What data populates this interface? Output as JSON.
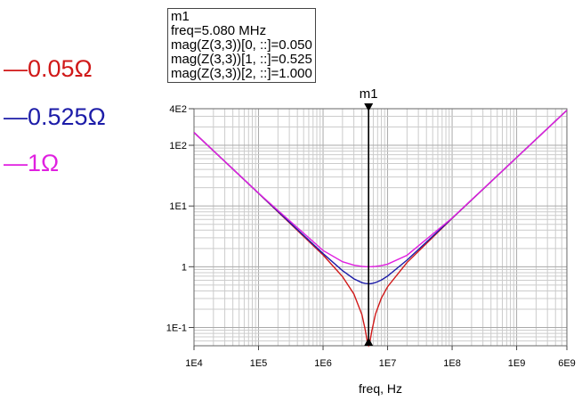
{
  "legend": [
    {
      "label": "—0.05Ω",
      "color": "#d01818"
    },
    {
      "label": "—0.525Ω",
      "color": "#1c1ca8"
    },
    {
      "label": "—1Ω",
      "color": "#e020e0"
    }
  ],
  "marker": {
    "name": "m1",
    "lines": [
      "m1",
      "freq=5.080 MHz",
      "mag(Z(3,3))[0, ::]=0.050",
      "mag(Z(3,3))[1, ::]=0.525",
      "mag(Z(3,3))[2, ::]=1.000"
    ],
    "freq": 5080000
  },
  "chart_data": {
    "type": "line",
    "xlabel": "freq, Hz",
    "ylabel": "",
    "xscale": "log",
    "yscale": "log",
    "xlim": [
      10000,
      6000000000
    ],
    "ylim": [
      0.05,
      400
    ],
    "grid": true,
    "x_ticks": [
      {
        "v": 10000,
        "label": "1E4"
      },
      {
        "v": 100000,
        "label": "1E5"
      },
      {
        "v": 1000000,
        "label": "1E6"
      },
      {
        "v": 10000000,
        "label": "1E7"
      },
      {
        "v": 100000000,
        "label": "1E8"
      },
      {
        "v": 1000000000,
        "label": "1E9"
      },
      {
        "v": 6000000000,
        "label": "6E9"
      }
    ],
    "y_ticks": [
      {
        "v": 400,
        "label": "4E2"
      },
      {
        "v": 100,
        "label": "1E2"
      },
      {
        "v": 10,
        "label": "1E1"
      },
      {
        "v": 1,
        "label": "1"
      },
      {
        "v": 0.1,
        "label": "1E-1"
      }
    ],
    "x": [
      10000,
      100000,
      1000000,
      2000000,
      3000000,
      4000000,
      4500000,
      4900000,
      5080000,
      5250000,
      5700000,
      6500000,
      8000000,
      10000000,
      20000000,
      100000000,
      1000000000,
      6000000000
    ],
    "series": [
      {
        "color": "#d01818",
        "values": [
          162.4,
          16.24,
          1.562,
          0.688,
          0.357,
          0.163,
          0.092,
          0.055,
          0.05,
          0.054,
          0.088,
          0.167,
          0.304,
          0.469,
          1.176,
          6.267,
          62.83,
          377
        ]
      },
      {
        "color": "#1c1ca8",
        "values": [
          162.4,
          16.25,
          1.647,
          0.864,
          0.633,
          0.547,
          0.531,
          0.526,
          0.525,
          0.525,
          0.53,
          0.549,
          0.605,
          0.702,
          1.287,
          6.289,
          62.83,
          377
        ]
      },
      {
        "color": "#e020e0",
        "values": [
          162.4,
          16.27,
          1.855,
          1.21,
          1.061,
          1.012,
          1.003,
          1.0,
          1.0,
          1.0,
          1.003,
          1.013,
          1.044,
          1.103,
          1.544,
          6.346,
          62.84,
          377
        ]
      }
    ]
  }
}
